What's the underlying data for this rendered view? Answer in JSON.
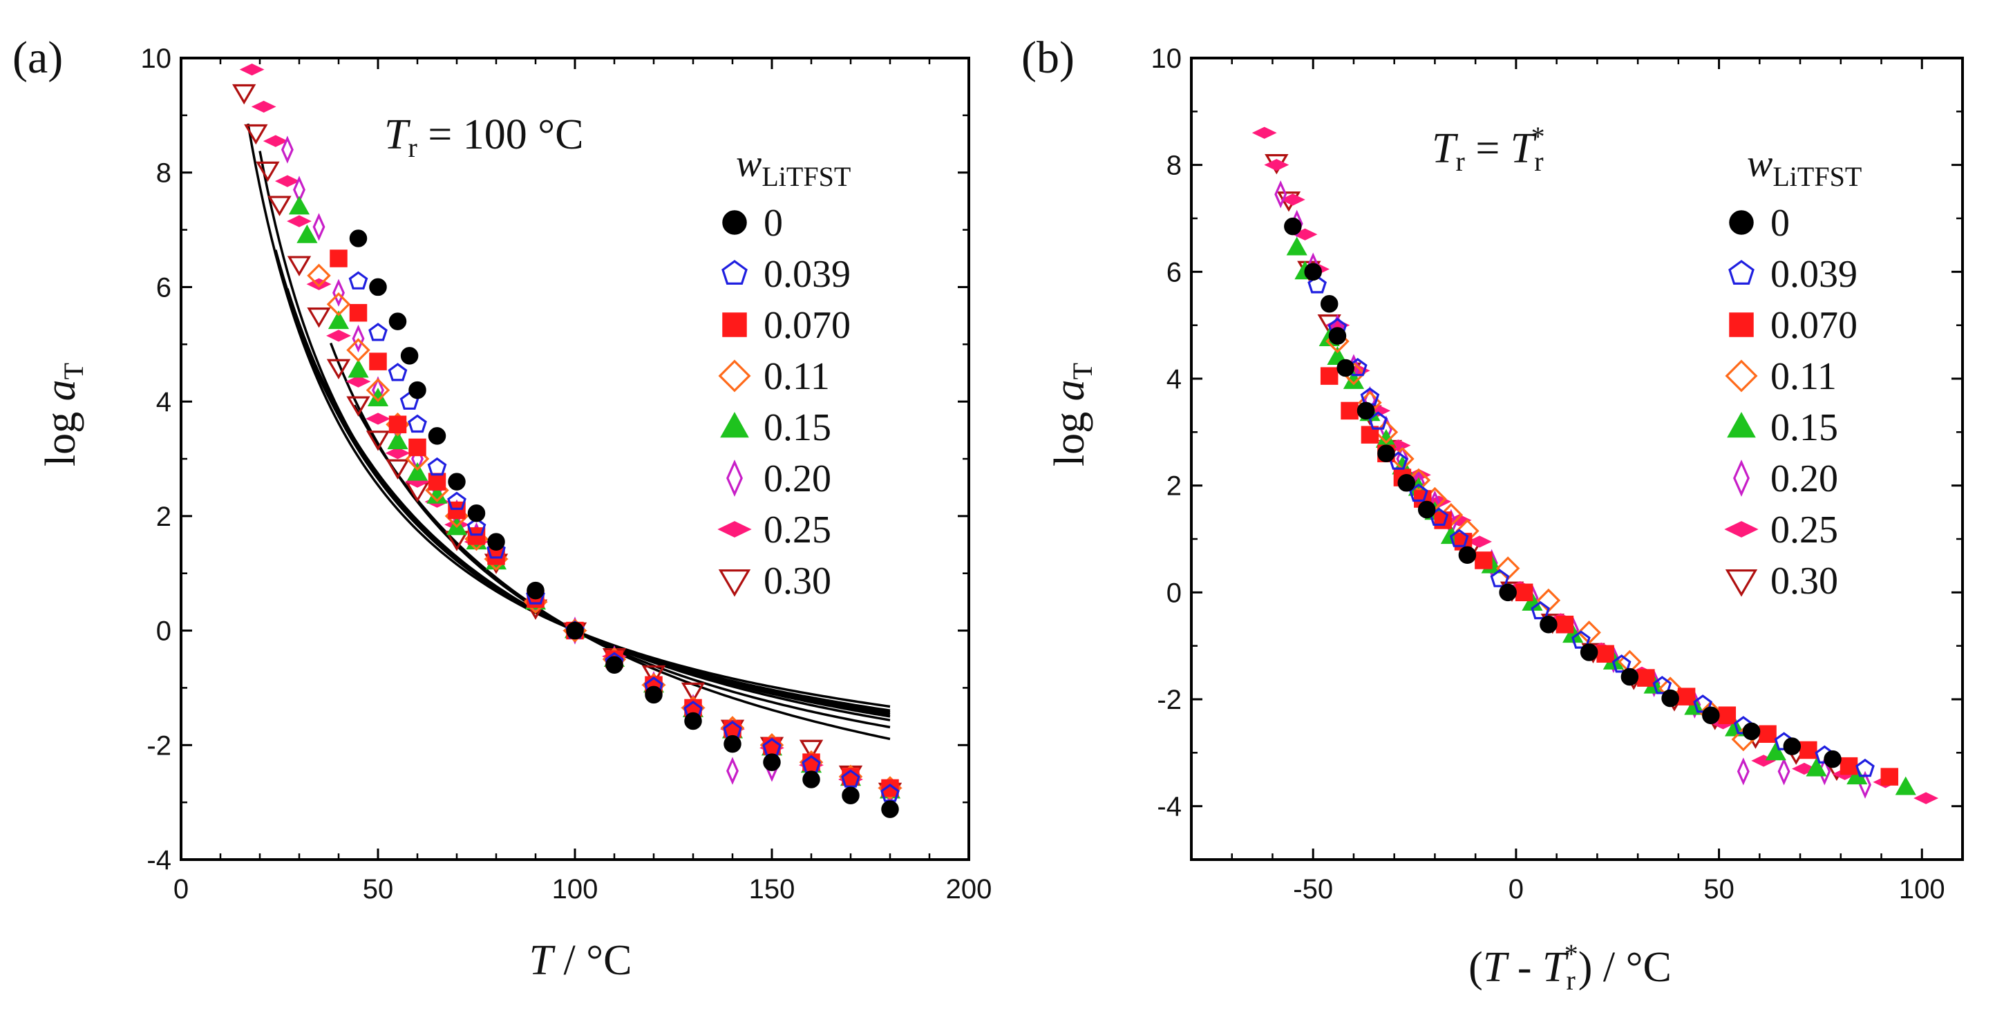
{
  "legend_title_main": "w",
  "legend_title_sub": "LiTFST",
  "series_styles": [
    {
      "label": "0",
      "marker": "circle",
      "fill": "#000000",
      "stroke": "#000000"
    },
    {
      "label": "0.039",
      "marker": "pentagon",
      "fill": "none",
      "stroke": "#1f1fe0"
    },
    {
      "label": "0.070",
      "marker": "square",
      "fill": "#ff1a1a",
      "stroke": "#ff1a1a"
    },
    {
      "label": "0.11",
      "marker": "diamond",
      "fill": "none",
      "stroke": "#ff6a1a"
    },
    {
      "label": "0.15",
      "marker": "triangle",
      "fill": "#1ec31e",
      "stroke": "#1ec31e"
    },
    {
      "label": "0.20",
      "marker": "thin-diamond",
      "fill": "none",
      "stroke": "#c81ec8"
    },
    {
      "label": "0.25",
      "marker": "flat-diamond",
      "fill": "#ff1a7a",
      "stroke": "#ff1a7a"
    },
    {
      "label": "0.30",
      "marker": "down-triangle",
      "fill": "none",
      "stroke": "#b01010"
    }
  ],
  "chart_data": [
    {
      "type": "scatter",
      "panel_label": "(a)",
      "annotation": {
        "italic": "T",
        "sub": "r",
        "rest": " = 100 °C"
      },
      "xlabel": {
        "italic": "T",
        "rest": " / °C"
      },
      "ylabel": {
        "prefix": "log ",
        "italic": "a",
        "sub": "T"
      },
      "xlim": [
        0,
        200
      ],
      "ylim": [
        -4,
        10
      ],
      "xticks": [
        0,
        50,
        100,
        150,
        200
      ],
      "yticks": [
        -4,
        -2,
        0,
        2,
        4,
        6,
        8,
        10
      ],
      "series": [
        {
          "name": "0",
          "x": [
            45,
            50,
            55,
            58,
            60,
            65,
            70,
            75,
            80,
            90,
            100,
            110,
            120,
            130,
            140,
            150,
            160,
            170,
            180
          ],
          "y": [
            6.85,
            6.0,
            5.4,
            4.8,
            4.2,
            3.4,
            2.6,
            2.05,
            1.55,
            0.7,
            0,
            -0.6,
            -1.12,
            -1.58,
            -1.98,
            -2.3,
            -2.6,
            -2.88,
            -3.12
          ]
        },
        {
          "name": "0.039",
          "x": [
            45,
            50,
            55,
            58,
            60,
            65,
            70,
            75,
            80,
            90,
            100,
            110,
            120,
            130,
            140,
            150,
            160,
            170,
            180
          ],
          "y": [
            6.1,
            5.2,
            4.5,
            4.0,
            3.6,
            2.85,
            2.25,
            1.8,
            1.4,
            0.6,
            0,
            -0.55,
            -0.98,
            -1.4,
            -1.75,
            -2.05,
            -2.35,
            -2.6,
            -2.85
          ]
        },
        {
          "name": "0.070",
          "x": [
            40,
            45,
            50,
            55,
            60,
            65,
            70,
            75,
            80,
            90,
            100,
            110,
            120,
            130,
            140,
            150,
            160,
            170,
            180
          ],
          "y": [
            6.5,
            5.55,
            4.7,
            3.6,
            3.2,
            2.6,
            2.1,
            1.65,
            1.3,
            0.55,
            0,
            -0.5,
            -0.95,
            -1.35,
            -1.72,
            -2.02,
            -2.3,
            -2.55,
            -2.75
          ]
        },
        {
          "name": "0.11",
          "x": [
            35,
            40,
            45,
            50,
            55,
            60,
            65,
            70,
            75,
            80,
            90,
            100,
            110,
            120,
            130,
            140,
            150,
            160,
            170,
            180
          ],
          "y": [
            6.2,
            5.7,
            4.9,
            4.2,
            3.6,
            3.0,
            2.45,
            2.0,
            1.6,
            1.25,
            0.5,
            0,
            -0.5,
            -0.95,
            -1.35,
            -1.7,
            -2.0,
            -2.3,
            -2.55,
            -2.75
          ]
        },
        {
          "name": "0.15",
          "x": [
            30,
            32,
            40,
            45,
            50,
            55,
            60,
            65,
            70,
            75,
            80,
            90,
            100,
            110,
            120,
            130,
            140,
            150,
            160,
            170,
            180
          ],
          "y": [
            7.4,
            6.9,
            5.4,
            4.55,
            4.05,
            3.3,
            2.75,
            2.35,
            1.8,
            1.55,
            1.2,
            0.5,
            0,
            -0.5,
            -0.95,
            -1.38,
            -1.75,
            -2.05,
            -2.35,
            -2.58,
            -2.8
          ]
        },
        {
          "name": "0.20",
          "x": [
            27,
            30,
            35,
            40,
            45,
            50,
            55,
            60,
            65,
            70,
            75,
            80,
            90,
            100,
            110,
            120,
            130,
            140,
            150,
            160,
            170,
            180
          ],
          "y": [
            8.4,
            7.7,
            7.05,
            5.9,
            5.1,
            4.2,
            3.55,
            3.0,
            2.5,
            2.05,
            1.65,
            1.3,
            0.55,
            0,
            -0.5,
            -0.95,
            -1.35,
            -2.45,
            -2.4,
            -2.4,
            -2.6,
            -2.8
          ]
        },
        {
          "name": "0.25",
          "x": [
            18,
            21,
            24,
            27,
            30,
            35,
            40,
            45,
            50,
            55,
            60,
            65,
            70,
            75,
            80,
            90,
            100,
            110,
            120,
            130,
            140,
            150,
            160,
            170,
            180
          ],
          "y": [
            9.8,
            9.15,
            8.55,
            7.85,
            7.15,
            6.05,
            5.15,
            4.35,
            3.7,
            3.1,
            2.6,
            2.25,
            1.85,
            1.55,
            1.25,
            0.5,
            0,
            -0.45,
            -0.95,
            -1.35,
            -1.72,
            -2.05,
            -2.35,
            -2.6,
            -2.75
          ]
        },
        {
          "name": "0.30",
          "x": [
            16,
            19,
            22,
            25,
            30,
            35,
            40,
            45,
            50,
            55,
            60,
            70,
            80,
            90,
            100,
            110,
            120,
            130,
            140,
            150,
            160,
            170,
            180
          ],
          "y": [
            9.4,
            8.7,
            8.05,
            7.45,
            6.4,
            5.5,
            4.6,
            3.95,
            3.35,
            2.85,
            2.45,
            1.6,
            1.2,
            0.4,
            0,
            -0.45,
            -0.75,
            -1.05,
            -1.7,
            -2.0,
            -2.05,
            -2.5,
            -2.8
          ]
        }
      ],
      "fit_lines": [
        {
          "name": "0",
          "C1": 4.85,
          "C2": 125,
          "from": 44
        },
        {
          "name": "0.039",
          "C1": 4.05,
          "C2": 112,
          "from": 38
        },
        {
          "name": "0.070",
          "C1": 3.95,
          "C2": 122,
          "from": 34
        },
        {
          "name": "0.11",
          "C1": 3.75,
          "C2": 120,
          "from": 30
        },
        {
          "name": "0.15",
          "C1": 3.6,
          "C2": 117,
          "from": 27
        },
        {
          "name": "0.20",
          "C1": 3.5,
          "C2": 116,
          "from": 24
        },
        {
          "name": "0.25",
          "C1": 3.35,
          "C2": 112,
          "from": 20
        },
        {
          "name": "0.30",
          "C1": 3.2,
          "C2": 113,
          "from": 17
        }
      ]
    },
    {
      "type": "scatter",
      "panel_label": "(b)",
      "annotation": {
        "italic": "T",
        "sub": "r",
        "rest": " = ",
        "italic2": "T",
        "sub2": "r",
        "sup2": "*"
      },
      "xlabel": {
        "prefix": "(",
        "italic": "T",
        "mid": " - ",
        "italic2": "T",
        "sub2": "r",
        "sup2": "*",
        "rest": ") / °C"
      },
      "ylabel": {
        "prefix": "log ",
        "italic": "a",
        "sub": "T"
      },
      "xlim": [
        -80,
        110
      ],
      "ylim": [
        -5,
        10
      ],
      "xticks": [
        -50,
        0,
        50,
        100
      ],
      "yticks": [
        -4,
        -2,
        0,
        2,
        4,
        6,
        8,
        10
      ],
      "series": [
        {
          "name": "0",
          "x": [
            -55,
            -50,
            -46,
            -44,
            -42,
            -37,
            -32,
            -27,
            -22,
            -12,
            -2,
            8,
            18,
            28,
            38,
            48,
            58,
            68,
            78
          ],
          "y": [
            6.85,
            6.0,
            5.4,
            4.8,
            4.2,
            3.4,
            2.6,
            2.05,
            1.55,
            0.7,
            0,
            -0.6,
            -1.12,
            -1.58,
            -1.98,
            -2.3,
            -2.6,
            -2.88,
            -3.12
          ]
        },
        {
          "name": "0.039",
          "x": [
            -49,
            -44,
            -39,
            -36,
            -34,
            -29,
            -24,
            -19,
            -14,
            -4,
            6,
            16,
            26,
            36,
            46,
            56,
            66,
            76,
            86
          ],
          "y": [
            5.75,
            4.95,
            4.2,
            3.65,
            3.2,
            2.45,
            1.85,
            1.4,
            1.0,
            0.25,
            -0.35,
            -0.9,
            -1.35,
            -1.75,
            -2.1,
            -2.5,
            -2.8,
            -3.05,
            -3.3
          ]
        },
        {
          "name": "0.070",
          "x": [
            -46,
            -41,
            -36,
            -32,
            -28,
            -23,
            -18,
            -13,
            -8,
            2,
            12,
            22,
            32,
            42,
            52,
            62,
            72,
            82,
            92
          ],
          "y": [
            4.05,
            3.4,
            2.95,
            2.6,
            2.15,
            1.75,
            1.35,
            0.95,
            0.6,
            0.0,
            -0.6,
            -1.15,
            -1.6,
            -1.95,
            -2.3,
            -2.65,
            -2.95,
            -3.25,
            -3.45
          ]
        },
        {
          "name": "0.11",
          "x": [
            -44,
            -40,
            -36,
            -32,
            -28,
            -24,
            -20,
            -16,
            -12,
            -2,
            8,
            18,
            28,
            38,
            48,
            56
          ],
          "y": [
            4.7,
            4.1,
            3.55,
            3.0,
            2.5,
            2.1,
            1.75,
            1.45,
            1.15,
            0.45,
            -0.15,
            -0.75,
            -1.3,
            -1.8,
            -2.25,
            -2.75
          ]
        },
        {
          "name": "0.15",
          "x": [
            -54,
            -52,
            -46,
            -44,
            -40,
            -36,
            -32,
            -28,
            -24,
            -20,
            -16,
            -6,
            4,
            14,
            24,
            34,
            44,
            54,
            64,
            74,
            84,
            96
          ],
          "y": [
            6.45,
            6.0,
            4.75,
            4.4,
            3.95,
            3.35,
            2.85,
            2.35,
            1.95,
            1.5,
            1.05,
            0.5,
            -0.2,
            -0.8,
            -1.3,
            -1.75,
            -2.15,
            -2.55,
            -3.0,
            -3.3,
            -3.45,
            -3.65
          ]
        },
        {
          "name": "0.20",
          "x": [
            -58,
            -54,
            -50,
            -44,
            -40,
            -36,
            -32,
            -28,
            -24,
            -20,
            -16,
            -6,
            4,
            14,
            24,
            34,
            44,
            56,
            66,
            76,
            86
          ],
          "y": [
            7.45,
            6.9,
            6.1,
            4.95,
            4.2,
            3.6,
            3.05,
            2.5,
            2.05,
            1.65,
            1.3,
            0.55,
            -0.1,
            -0.7,
            -1.25,
            -1.7,
            -2.1,
            -3.35,
            -3.35,
            -3.35,
            -3.6
          ]
        },
        {
          "name": "0.25",
          "x": [
            -62,
            -59,
            -55,
            -52,
            -49,
            -44,
            -39,
            -34,
            -29,
            -24,
            -19,
            -14,
            -9,
            1,
            11,
            21,
            31,
            41,
            51,
            61,
            71,
            81,
            91,
            101
          ],
          "y": [
            8.6,
            8.0,
            7.35,
            6.7,
            6.05,
            5.0,
            4.15,
            3.4,
            2.75,
            2.2,
            1.7,
            1.35,
            0.95,
            0.1,
            -0.5,
            -1.05,
            -1.5,
            -1.95,
            -2.45,
            -3.15,
            -3.3,
            -3.4,
            -3.55,
            -3.85
          ]
        },
        {
          "name": "0.30",
          "x": [
            -59,
            -56,
            -51,
            -46,
            -41,
            -36,
            -31,
            -26,
            -21,
            -11,
            -1,
            9,
            19,
            29,
            39,
            49,
            59,
            69,
            79
          ],
          "y": [
            8.05,
            7.35,
            6.05,
            5.05,
            4.15,
            3.35,
            2.7,
            2.1,
            1.6,
            0.85,
            0.05,
            -0.55,
            -1.1,
            -1.6,
            -2.0,
            -2.35,
            -2.7,
            -3.0,
            -3.3
          ]
        }
      ]
    }
  ]
}
